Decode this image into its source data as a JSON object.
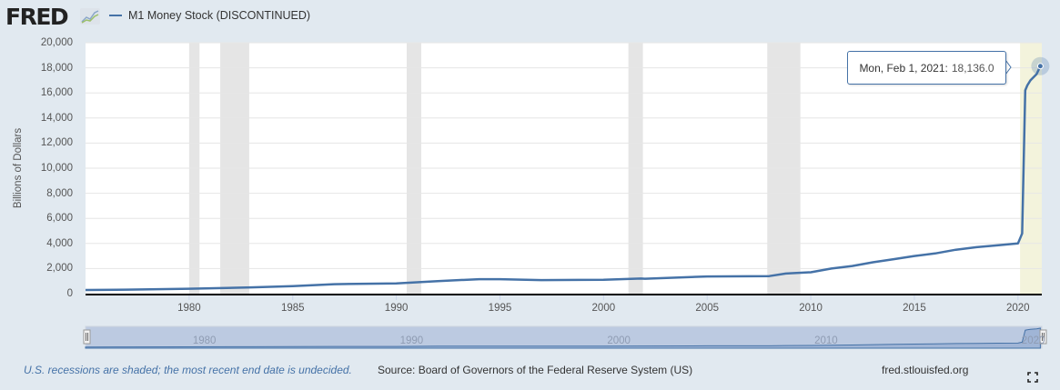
{
  "header": {
    "logo_text": "FRED",
    "logo_icon": "chart-line-icon",
    "legend_label": "M1 Money Stock (DISCONTINUED)",
    "legend_color": "#4572a7"
  },
  "tooltip": {
    "date": "Mon, Feb 1, 2021:",
    "value": "18,136.0"
  },
  "footer": {
    "recession_note": "U.S. recessions are shaded; the most recent end date is undecided.",
    "source": "Source: Board of Governors of the Federal Reserve System (US)",
    "url": "fred.stlouisfed.org",
    "fullscreen_icon": "fullscreen-icon"
  },
  "navigator": {
    "labels": [
      "1980",
      "1990",
      "2000",
      "2010",
      "2020"
    ]
  },
  "colors": {
    "background": "#e1e9f0",
    "plot_bg": "#ffffff",
    "series": "#4572a7",
    "recession": "#e5e5e5",
    "undecided_recession": "#f3f3dc",
    "navigator_fill": "#bccae1"
  },
  "chart_data": {
    "type": "line",
    "title": "M1 Money Stock (DISCONTINUED)",
    "xlabel": "",
    "ylabel": "Billions of Dollars",
    "ylim": [
      0,
      20000
    ],
    "xlim": [
      1975.0,
      2021.15
    ],
    "yticks": [
      "0",
      "2,000",
      "4,000",
      "6,000",
      "8,000",
      "10,000",
      "12,000",
      "14,000",
      "16,000",
      "18,000",
      "20,000"
    ],
    "xticks": [
      "1980",
      "1985",
      "1990",
      "1995",
      "2000",
      "2005",
      "2010",
      "2015",
      "2020"
    ],
    "grid": true,
    "legend_position": "top-left",
    "series": [
      {
        "name": "M1 Money Stock (DISCONTINUED)",
        "x": [
          1975.0,
          1977,
          1980,
          1983,
          1985,
          1987,
          1990,
          1992,
          1994,
          1995,
          1997,
          2000,
          2001.8,
          2002,
          2005,
          2008,
          2008.8,
          2010,
          2011,
          2012,
          2013,
          2014,
          2015,
          2016,
          2017,
          2018,
          2019,
          2020.0,
          2020.2,
          2020.35,
          2020.45,
          2020.6,
          2020.9,
          2021.08
        ],
        "values": [
          290,
          320,
          390,
          500,
          600,
          750,
          820,
          1000,
          1150,
          1150,
          1080,
          1100,
          1200,
          1190,
          1370,
          1400,
          1600,
          1700,
          2000,
          2200,
          2500,
          2750,
          3000,
          3200,
          3500,
          3700,
          3850,
          4000,
          4800,
          16200,
          16600,
          17000,
          17500,
          18136
        ]
      }
    ],
    "recessions": [
      {
        "start": 1980.0,
        "end": 1980.5
      },
      {
        "start": 1981.5,
        "end": 1982.9
      },
      {
        "start": 1990.5,
        "end": 1991.2
      },
      {
        "start": 2001.2,
        "end": 2001.9
      },
      {
        "start": 2007.9,
        "end": 2009.5
      },
      {
        "start": 2020.1,
        "end": 2021.15,
        "undecided": true
      }
    ],
    "annotations": [
      {
        "x": "2021-02-01",
        "text": "Mon, Feb 1, 2021: 18,136.0"
      }
    ]
  }
}
